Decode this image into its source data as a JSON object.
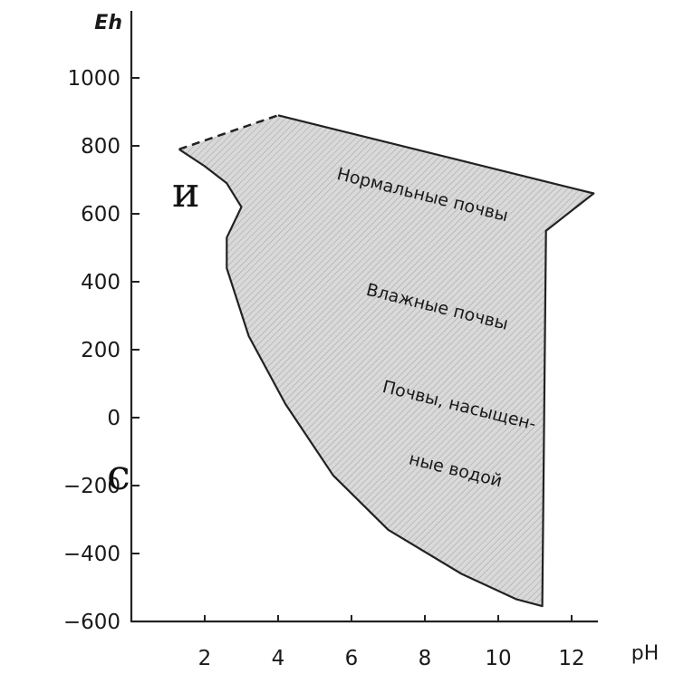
{
  "chart_data": {
    "type": "area",
    "xlabel": "pH",
    "ylabel": "Eh",
    "xlim": [
      0,
      13
    ],
    "ylim": [
      -600,
      1100
    ],
    "x_ticks": [
      2,
      4,
      6,
      8,
      10,
      12
    ],
    "y_ticks": [
      1000,
      800,
      600,
      400,
      200,
      0,
      -200,
      -400,
      -600
    ],
    "x_tick_labels": [
      "2",
      "4",
      "6",
      "8",
      "10",
      "12"
    ],
    "y_tick_labels": [
      "1000",
      "800",
      "600",
      "400",
      "200",
      "0",
      "−200",
      "−400",
      "−600"
    ],
    "region": {
      "fill": "#d9d9d9",
      "hatch": true,
      "boundary": [
        [
          4.0,
          890
        ],
        [
          12.6,
          660
        ],
        [
          11.3,
          550
        ],
        [
          11.2,
          -555
        ],
        [
          10.5,
          -535
        ],
        [
          9.0,
          -460
        ],
        [
          7.0,
          -330
        ],
        [
          5.5,
          -170
        ],
        [
          4.2,
          40
        ],
        [
          3.2,
          240
        ],
        [
          2.6,
          440
        ],
        [
          2.6,
          530
        ],
        [
          3.0,
          620
        ],
        [
          2.6,
          690
        ],
        [
          2.0,
          740
        ],
        [
          1.3,
          790
        ]
      ],
      "dashed_edge": [
        [
          1.3,
          790
        ],
        [
          4.0,
          890
        ]
      ]
    },
    "annotations": [
      {
        "text": "Нормальные почвы",
        "x": 7.9,
        "y": 640,
        "angle": 14
      },
      {
        "text": "Влажные почвы",
        "x": 8.3,
        "y": 310,
        "angle": 14
      },
      {
        "text": "Почвы, насыщен-",
        "x": 8.9,
        "y": 20,
        "angle": 14
      },
      {
        "text": "ные водой",
        "x": 8.8,
        "y": -170,
        "angle": 14
      }
    ]
  },
  "side_text": {
    "left_upper": "и",
    "left_lower": "с"
  }
}
